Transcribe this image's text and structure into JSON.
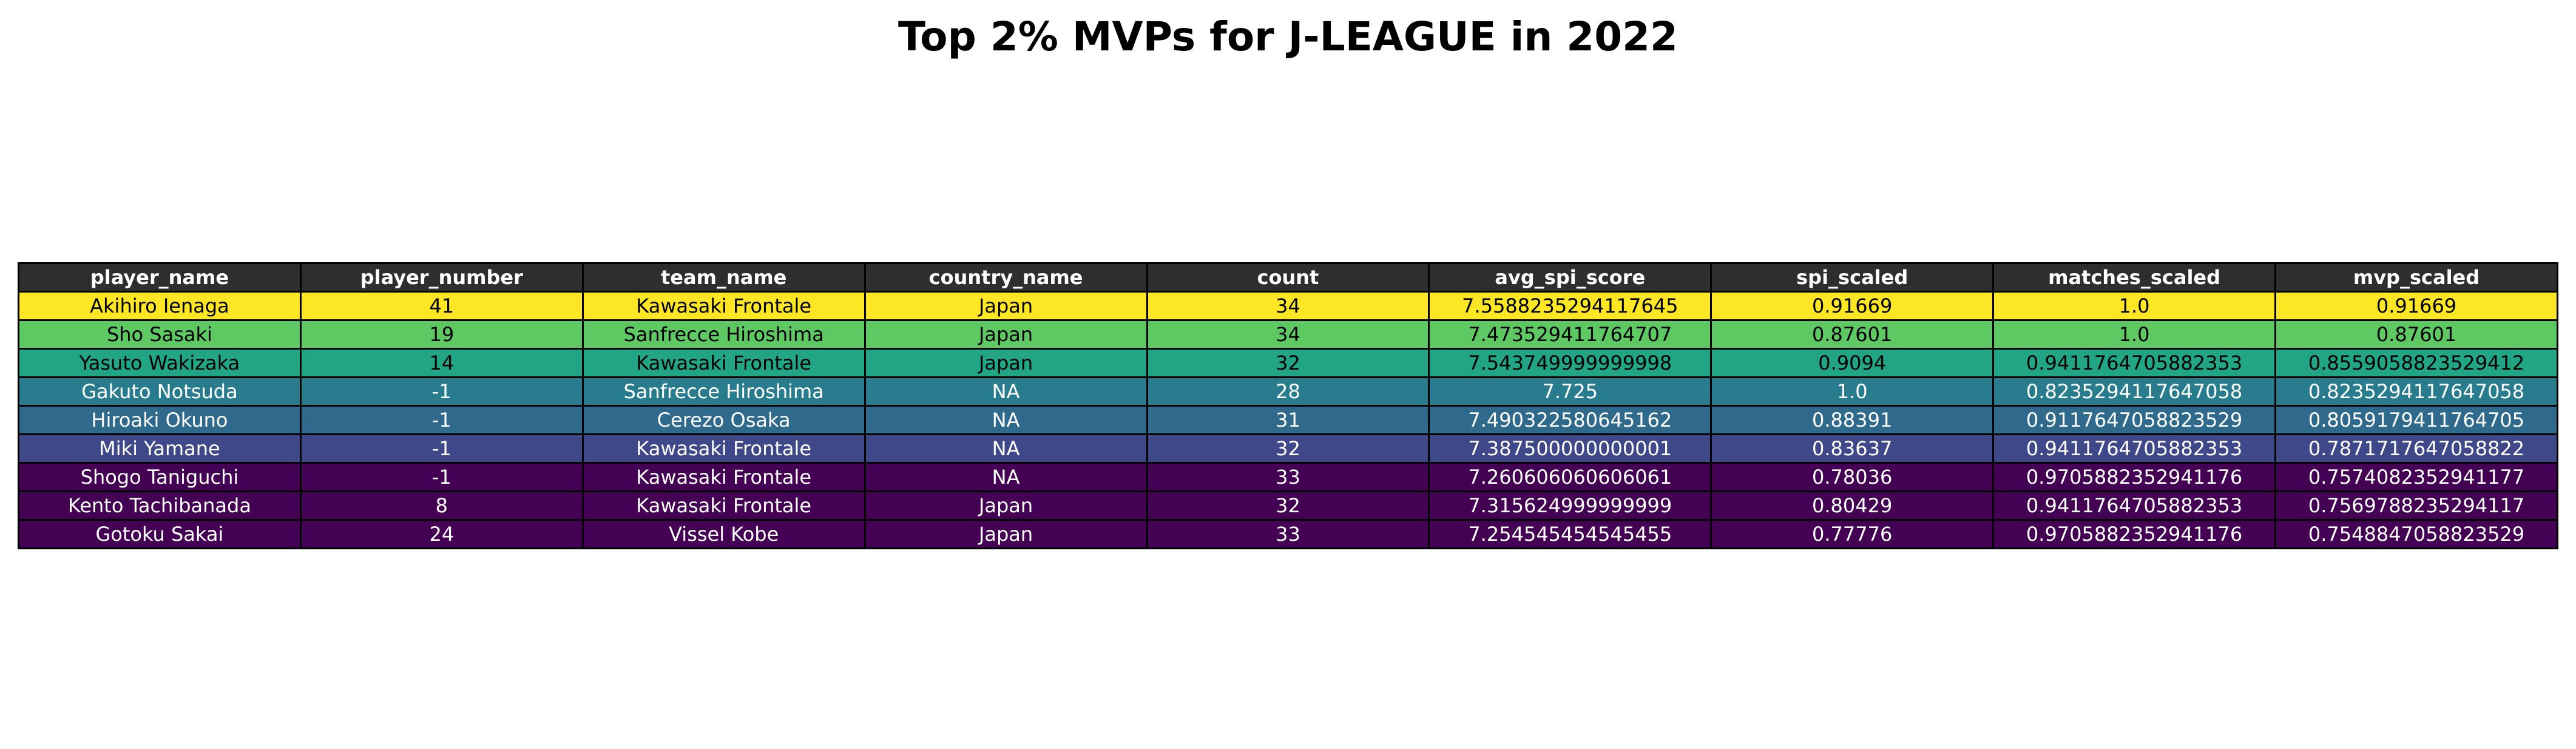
{
  "chart_data": {
    "type": "table",
    "title": "Top 2% MVPs for J-LEAGUE in 2022",
    "columns": [
      "player_name",
      "player_number",
      "team_name",
      "country_name",
      "count",
      "avg_spi_score",
      "spi_scaled",
      "matches_scaled",
      "mvp_scaled"
    ],
    "rows": [
      [
        "Akihiro Ienaga",
        "41",
        "Kawasaki Frontale",
        "Japan",
        "34",
        "7.5588235294117645",
        "0.91669",
        "1.0",
        "0.91669"
      ],
      [
        "Sho Sasaki",
        "19",
        "Sanfrecce Hiroshima",
        "Japan",
        "34",
        "7.473529411764707",
        "0.87601",
        "1.0",
        "0.87601"
      ],
      [
        "Yasuto Wakizaka",
        "14",
        "Kawasaki Frontale",
        "Japan",
        "32",
        "7.543749999999998",
        "0.9094",
        "0.9411764705882353",
        "0.8559058823529412"
      ],
      [
        "Gakuto Notsuda",
        "-1",
        "Sanfrecce Hiroshima",
        "NA",
        "28",
        "7.725",
        "1.0",
        "0.8235294117647058",
        "0.8235294117647058"
      ],
      [
        "Hiroaki Okuno",
        "-1",
        "Cerezo Osaka",
        "NA",
        "31",
        "7.490322580645162",
        "0.88391",
        "0.9117647058823529",
        "0.8059179411764705"
      ],
      [
        "Miki Yamane",
        "-1",
        "Kawasaki Frontale",
        "NA",
        "32",
        "7.387500000000001",
        "0.83637",
        "0.9411764705882353",
        "0.7871717647058822"
      ],
      [
        "Shogo Taniguchi",
        "-1",
        "Kawasaki Frontale",
        "NA",
        "33",
        "7.260606060606061",
        "0.78036",
        "0.9705882352941176",
        "0.7574082352941177"
      ],
      [
        "Kento Tachibanada",
        "8",
        "Kawasaki Frontale",
        "Japan",
        "32",
        "7.315624999999999",
        "0.80429",
        "0.9411764705882353",
        "0.7569788235294117"
      ],
      [
        "Gotoku Sakai",
        "24",
        "Vissel Kobe",
        "Japan",
        "33",
        "7.254545454545455",
        "0.77776",
        "0.9705882352941176",
        "0.7548847058823529"
      ]
    ],
    "header_color": "#2e2e2e",
    "row_colors": [
      "#fde725",
      "#5ec962",
      "#21a585",
      "#287c8e",
      "#2f6a8d",
      "#3f4889",
      "#440154",
      "#440154",
      "#440154"
    ],
    "row_text_colors": [
      "#000000",
      "#000000",
      "#000000",
      "#ffffff",
      "#ffffff",
      "#ffffff",
      "#ffffff",
      "#ffffff",
      "#ffffff"
    ]
  }
}
